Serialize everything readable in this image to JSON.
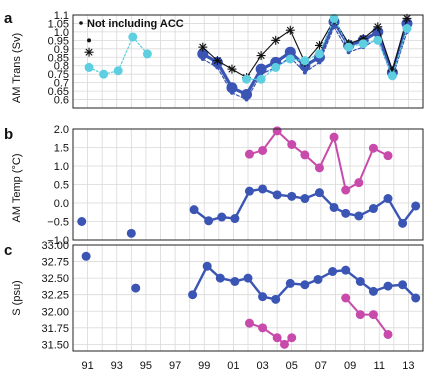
{
  "colors": {
    "blue": "#3a55b4",
    "cyan": "#5ecfe0",
    "magenta": "#c84aab",
    "black": "#111111",
    "grid": "#d9d9d9"
  },
  "x_ticks": [
    "91",
    "93",
    "95",
    "97",
    "99",
    "01",
    "03",
    "05",
    "07",
    "09",
    "11",
    "13"
  ],
  "chart_data": [
    {
      "panel": "a",
      "type": "line",
      "ylabel": "AM Trans (Sv)",
      "ylim": [
        0.55,
        1.1
      ],
      "yticks": [
        "0.6",
        "0.65",
        "0.7",
        "0.75",
        "0.8",
        "0.85",
        "0.9",
        "0.95",
        "1.0",
        "1.05",
        "1.1"
      ],
      "legend_text": "Not including ACC",
      "grid": true,
      "series": [
        {
          "style": "thick-blue",
          "x": [
            1998.9,
            1999.9,
            2000.9,
            2001.9,
            2002.9,
            2003.9,
            2004.9,
            2005.9,
            2006.9,
            2007.9,
            2008.9,
            2009.9,
            2010.9,
            2011.9,
            2012.9
          ],
          "values": [
            0.87,
            0.82,
            0.67,
            0.63,
            0.78,
            0.82,
            0.88,
            0.8,
            0.85,
            1.06,
            0.92,
            0.95,
            1.0,
            0.76,
            1.05
          ]
        },
        {
          "style": "thin-blue",
          "x": [
            1998.9,
            1999.9,
            2000.9,
            2001.9,
            2002.9,
            2003.9,
            2004.9,
            2005.9,
            2006.9,
            2007.9,
            2008.9,
            2009.9,
            2010.9,
            2011.9,
            2012.9
          ],
          "values": [
            0.84,
            0.79,
            0.64,
            0.6,
            0.75,
            0.79,
            0.85,
            0.76,
            0.82,
            1.03,
            0.88,
            0.91,
            0.96,
            0.73,
            1.0
          ]
        },
        {
          "style": "black-asterisk",
          "x": [
            1991.1,
            1998.9,
            1999.9,
            2000.9,
            2001.9,
            2002.9,
            2003.9,
            2004.9,
            2005.9,
            2006.9,
            2007.9,
            2008.9,
            2009.9,
            2010.9,
            2011.9,
            2012.9
          ],
          "values": [
            0.88,
            0.91,
            0.83,
            0.78,
            0.73,
            0.86,
            0.95,
            1.01,
            0.82,
            0.92,
            1.07,
            0.93,
            0.96,
            1.03,
            0.77,
            1.08
          ]
        },
        {
          "style": "cyan",
          "x": [
            1991.1,
            1992.1,
            1993.1,
            1994.1,
            1995.1,
            2001.9,
            2002.9,
            2003.9,
            2004.9,
            2005.9,
            2006.9,
            2007.9,
            2008.9,
            2009.9,
            2010.9,
            2011.9,
            2012.9
          ],
          "values": [
            0.79,
            0.75,
            0.77,
            0.97,
            0.87,
            0.72,
            0.72,
            0.79,
            0.84,
            0.83,
            0.87,
            1.08,
            0.91,
            0.93,
            0.95,
            0.74,
            1.02
          ]
        },
        {
          "style": "black-dot",
          "x": [
            1991.1
          ],
          "values": [
            0.95
          ]
        }
      ]
    },
    {
      "panel": "b",
      "type": "line",
      "ylabel": "AM Temp (°C)",
      "ylim": [
        -1.0,
        2.0
      ],
      "yticks": [
        "−1.0",
        "−0.5",
        "0.0",
        "0.5",
        "1.0",
        "1.5",
        "2.0"
      ],
      "grid": true,
      "series": [
        {
          "style": "blue",
          "x": [
            1990.6,
            1994.0,
            1998.3,
            1999.3,
            2000.2,
            2001.1,
            2002.1,
            2003.0,
            2004.0,
            2005.0,
            2005.9,
            2006.9,
            2007.9,
            2008.7,
            2009.6,
            2010.6,
            2011.6,
            2012.6,
            2013.5
          ],
          "values": [
            -0.5,
            -0.82,
            -0.18,
            -0.48,
            -0.38,
            -0.42,
            0.32,
            0.38,
            0.22,
            0.18,
            0.12,
            0.28,
            -0.12,
            -0.28,
            -0.35,
            -0.15,
            0.12,
            -0.55,
            -0.08
          ]
        },
        {
          "style": "magenta",
          "x": [
            2002.1,
            2003.0,
            2004.0,
            2005.0,
            2005.9,
            2006.9,
            2007.9,
            2008.7,
            2009.6,
            2010.6,
            2011.6
          ],
          "values": [
            1.32,
            1.42,
            1.95,
            1.58,
            1.3,
            0.95,
            1.78,
            0.35,
            0.55,
            1.48,
            1.28
          ]
        }
      ]
    },
    {
      "panel": "c",
      "type": "line",
      "ylabel": "S (psu)",
      "ylim": [
        31.4,
        33.0
      ],
      "yticks": [
        "31.50",
        "31.75",
        "32.00",
        "32.25",
        "32.50",
        "32.75",
        "33.00"
      ],
      "grid": true,
      "series": [
        {
          "style": "blue",
          "x": [
            1990.9,
            1994.3,
            1998.2,
            1999.2,
            2000.1,
            2001.1,
            2002.0,
            2003.0,
            2003.9,
            2004.9,
            2005.9,
            2006.8,
            2007.8,
            2008.7,
            2009.7,
            2010.6,
            2011.6,
            2012.6,
            2013.5
          ],
          "values": [
            32.83,
            32.35,
            32.25,
            32.68,
            32.5,
            32.45,
            32.5,
            32.22,
            32.18,
            32.42,
            32.4,
            32.48,
            32.6,
            32.62,
            32.45,
            32.3,
            32.38,
            32.4,
            32.2
          ]
        },
        {
          "style": "magenta",
          "x": [
            2002.1,
            2003.0,
            2004.0,
            2004.5,
            2005.0,
            2008.7,
            2009.7,
            2010.6,
            2011.6
          ],
          "values": [
            31.82,
            31.75,
            31.6,
            31.5,
            31.6,
            32.2,
            31.95,
            31.95,
            31.65
          ]
        }
      ]
    }
  ]
}
